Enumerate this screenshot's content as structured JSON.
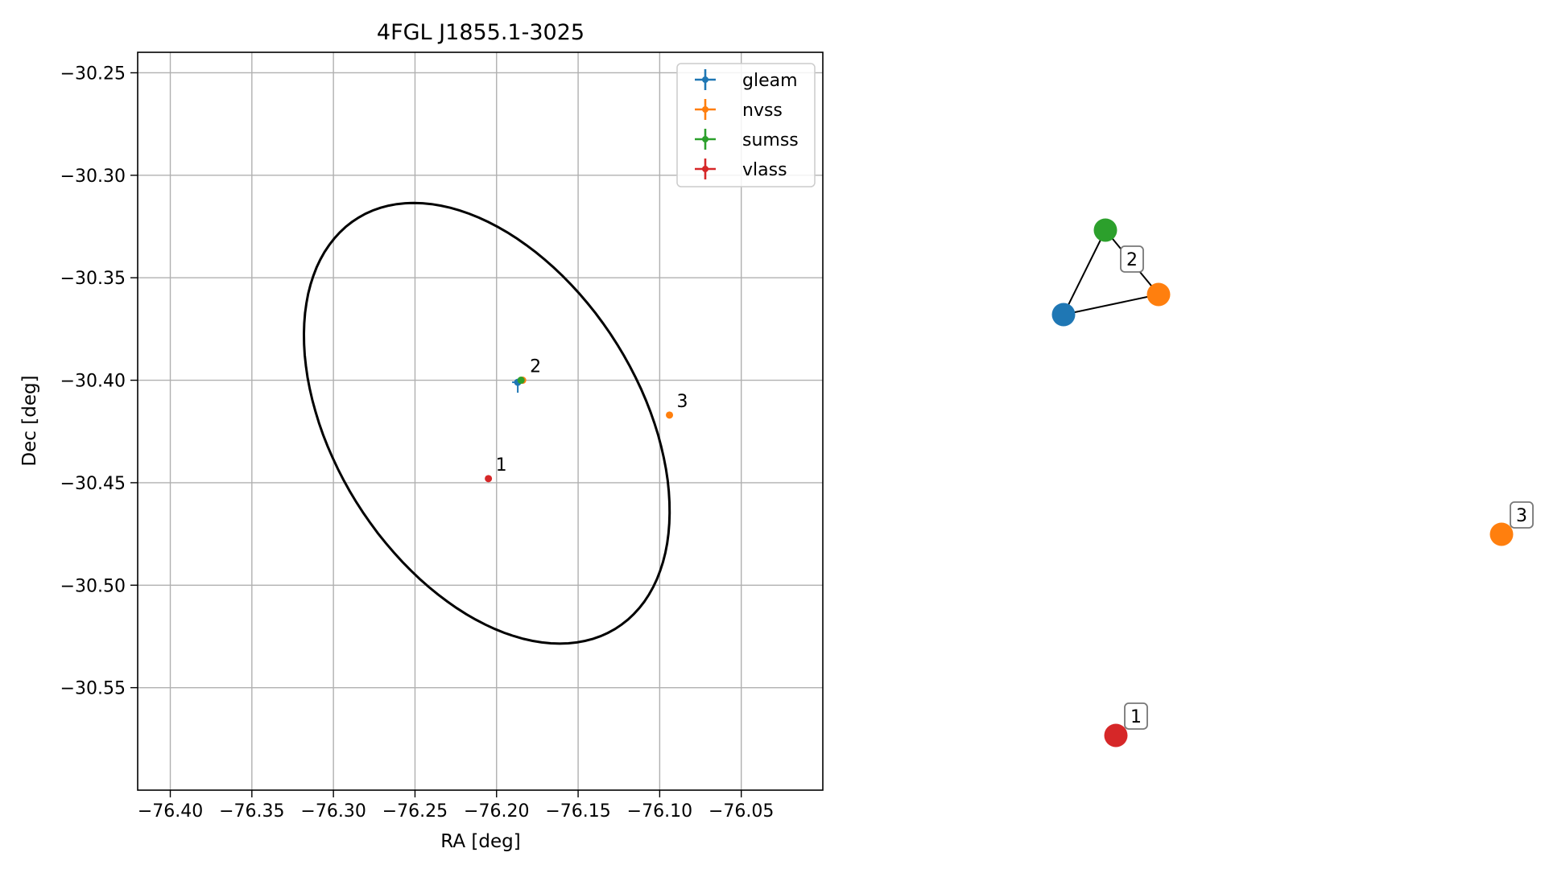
{
  "chart_data": [
    {
      "type": "scatter",
      "title": "4FGL J1855.1-3025",
      "xlabel": "RA [deg]",
      "ylabel": "Dec [deg]",
      "xlim": [
        -76.42,
        -76.0
      ],
      "ylim": [
        -30.6,
        -30.24
      ],
      "x_ticks": [
        -76.4,
        -76.35,
        -76.3,
        -76.25,
        -76.2,
        -76.15,
        -76.1,
        -76.05
      ],
      "x_tick_labels": [
        "−76.40",
        "−76.35",
        "−76.30",
        "−76.25",
        "−76.20",
        "−76.15",
        "−76.10",
        "−76.05"
      ],
      "y_ticks": [
        -30.25,
        -30.3,
        -30.35,
        -30.4,
        -30.45,
        -30.5,
        -30.55
      ],
      "y_tick_labels": [
        "−30.25",
        "−30.30",
        "−30.35",
        "−30.40",
        "−30.45",
        "−30.50",
        "−30.55"
      ],
      "grid": true,
      "legend_position": "top-right",
      "series": [
        {
          "name": "gleam",
          "color": "#1f77b4",
          "points": [
            {
              "x": -76.187,
              "y": -30.401,
              "label": ""
            }
          ]
        },
        {
          "name": "nvss",
          "color": "#ff7f0e",
          "points": [
            {
              "x": -76.184,
              "y": -30.4,
              "label": "2"
            },
            {
              "x": -76.094,
              "y": -30.417,
              "label": "3"
            }
          ]
        },
        {
          "name": "sumss",
          "color": "#2ca02c",
          "points": [
            {
              "x": -76.185,
              "y": -30.4,
              "label": ""
            }
          ]
        },
        {
          "name": "vlass",
          "color": "#d62728",
          "points": [
            {
              "x": -76.205,
              "y": -30.448,
              "label": "1"
            }
          ]
        }
      ],
      "ellipse": {
        "color": "#000000",
        "center": [
          -76.206,
          -30.421
        ],
        "semi_major": 0.13,
        "semi_minor": 0.085,
        "angle_deg": -42
      }
    },
    {
      "type": "graph",
      "nodes": [
        {
          "id": "gleam-2",
          "color": "#1f77b4",
          "label": ""
        },
        {
          "id": "sumss-2",
          "color": "#2ca02c",
          "label": ""
        },
        {
          "id": "nvss-2",
          "color": "#ff7f0e",
          "label": ""
        },
        {
          "id": "nvss-3",
          "color": "#ff7f0e",
          "label": "3"
        },
        {
          "id": "vlass-1",
          "color": "#d62728",
          "label": "1"
        }
      ],
      "edges": [
        {
          "source": "gleam-2",
          "target": "sumss-2"
        },
        {
          "source": "gleam-2",
          "target": "nvss-2"
        },
        {
          "source": "sumss-2",
          "target": "nvss-2"
        }
      ],
      "group_labels": [
        {
          "label": "2"
        }
      ]
    }
  ]
}
